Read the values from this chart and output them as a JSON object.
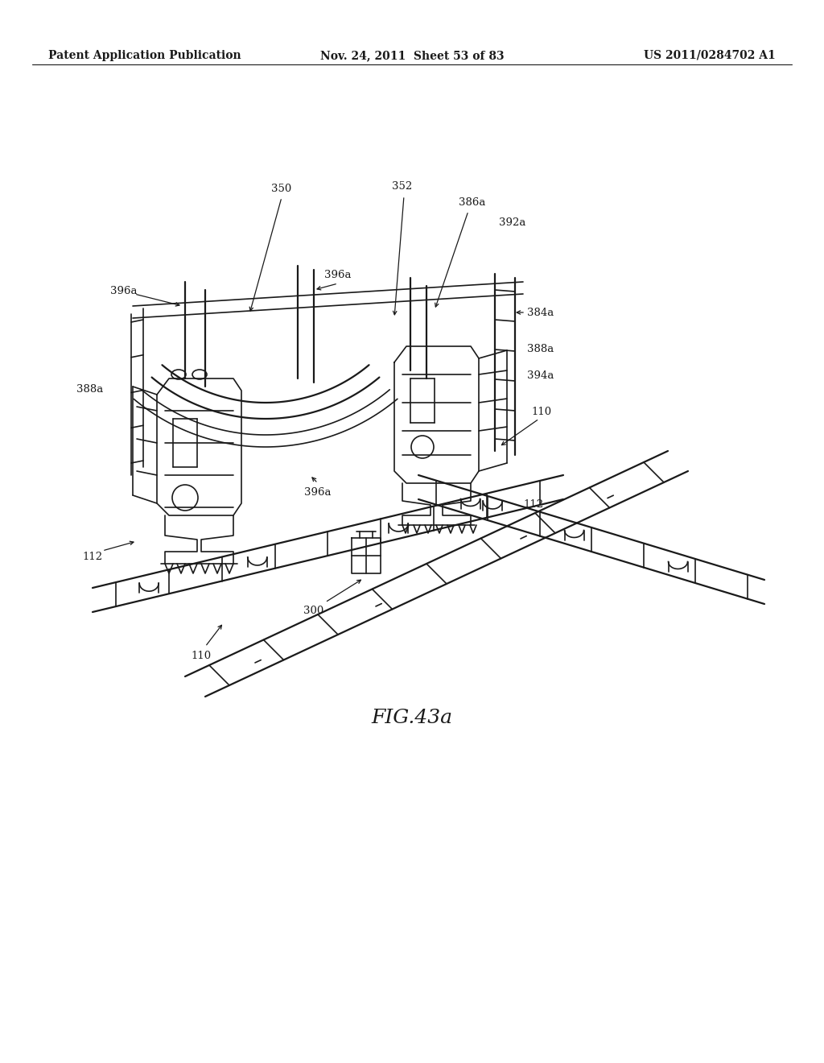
{
  "title": "FIG.43a",
  "header_left": "Patent Application Publication",
  "header_center": "Nov. 24, 2011  Sheet 53 of 83",
  "header_right": "US 2011/0284702 A1",
  "background_color": "#ffffff",
  "line_color": "#1a1a1a",
  "fig_label_fontsize": 18,
  "header_fontsize": 10
}
